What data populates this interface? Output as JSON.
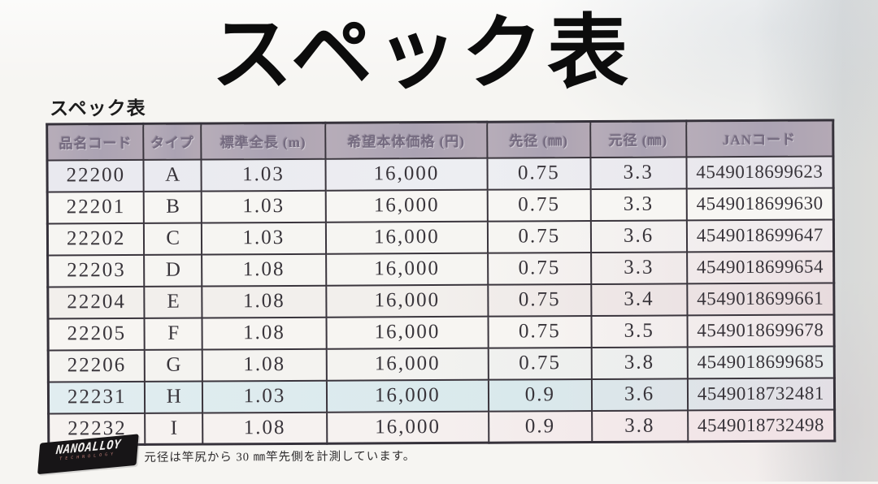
{
  "page": {
    "title_large": "スペック表",
    "table_heading": "スペック表",
    "footnote": "元径は竿尻から 30 ㎜竿先側を計測しています。"
  },
  "logo": {
    "name": "NANOALLOY",
    "subtext": "TECHNOLOGY"
  },
  "table": {
    "columns": [
      "品名コード",
      "タイプ",
      "標準全長 (m)",
      "希望本体価格 (円)",
      "先径 (㎜)",
      "元径 (㎜)",
      "JANコード"
    ],
    "rows": [
      [
        "22200",
        "A",
        "1.03",
        "16,000",
        "0.75",
        "3.3",
        "4549018699623"
      ],
      [
        "22201",
        "B",
        "1.03",
        "16,000",
        "0.75",
        "3.3",
        "4549018699630"
      ],
      [
        "22202",
        "C",
        "1.03",
        "16,000",
        "0.75",
        "3.6",
        "4549018699647"
      ],
      [
        "22203",
        "D",
        "1.08",
        "16,000",
        "0.75",
        "3.3",
        "4549018699654"
      ],
      [
        "22204",
        "E",
        "1.08",
        "16,000",
        "0.75",
        "3.4",
        "4549018699661"
      ],
      [
        "22205",
        "F",
        "1.08",
        "16,000",
        "0.75",
        "3.5",
        "4549018699678"
      ],
      [
        "22206",
        "G",
        "1.08",
        "16,000",
        "0.75",
        "3.8",
        "4549018699685"
      ],
      [
        "22231",
        "H",
        "1.03",
        "16,000",
        "0.9",
        "3.6",
        "4549018732481"
      ],
      [
        "22232",
        "I",
        "1.08",
        "16,000",
        "0.9",
        "3.8",
        "4549018732498"
      ]
    ]
  },
  "colors": {
    "paper": "#f6f5f2",
    "header_bg": "#b1a7b4",
    "header_text": "#756b80",
    "table_border": "#35313a",
    "cell_text": "#38343a",
    "highlight_row_blue": "#dbe9ec",
    "highlight_row_pink": "#f0e1e5",
    "logo_bg": "#171517",
    "logo_text": "#f1efed",
    "logo_subtext": "#c5807a"
  }
}
